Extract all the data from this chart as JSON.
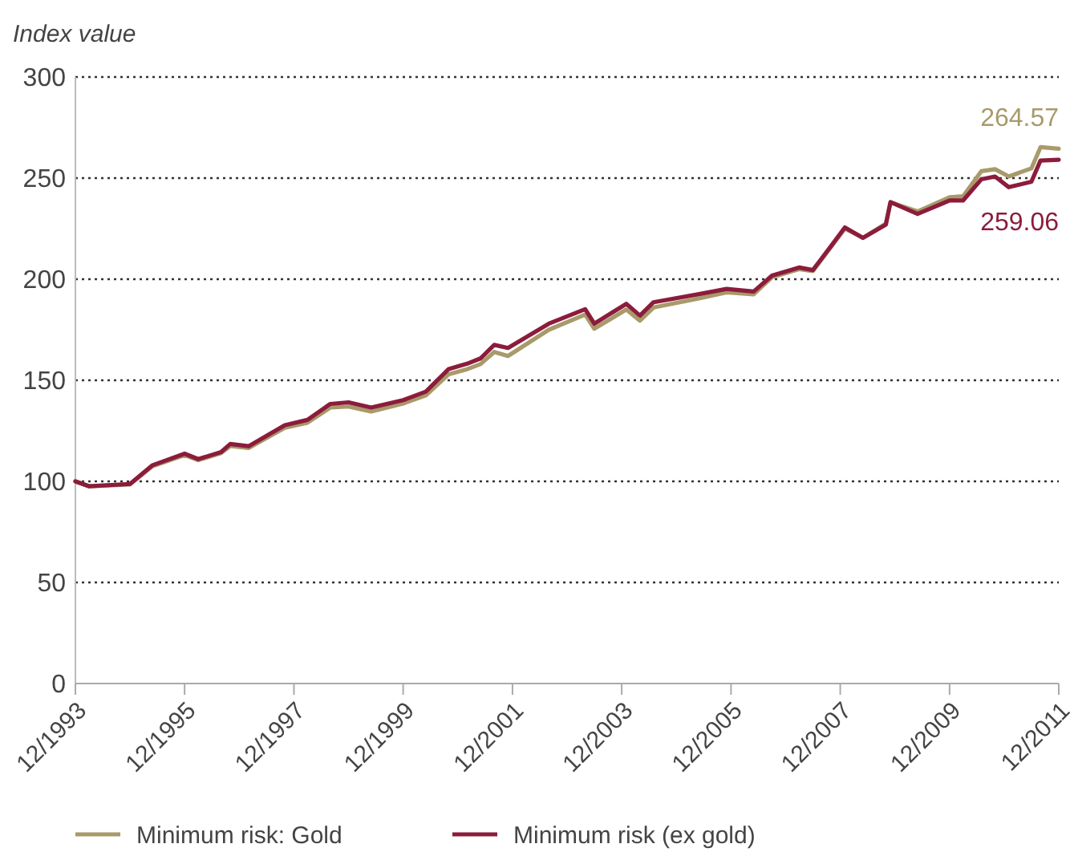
{
  "chart_data": {
    "type": "line",
    "ylabel": "Index value",
    "x": [
      "1993-12",
      "1994-03",
      "1994-12",
      "1995-05",
      "1995-12",
      "1996-03",
      "1996-08",
      "1996-10",
      "1997-02",
      "1997-10",
      "1998-03",
      "1998-08",
      "1998-12",
      "1999-05",
      "1999-12",
      "2000-05",
      "2000-10",
      "2001-02",
      "2001-05",
      "2001-08",
      "2001-11",
      "2002-08",
      "2003-04",
      "2003-06",
      "2004-01",
      "2004-04",
      "2004-07",
      "2005-05",
      "2005-11",
      "2006-05",
      "2006-09",
      "2007-03",
      "2007-06",
      "2007-10",
      "2008-01",
      "2008-05",
      "2008-10",
      "2008-11",
      "2009-05",
      "2009-12",
      "2010-03",
      "2010-07",
      "2010-10",
      "2011-01",
      "2011-06",
      "2011-08",
      "2011-12"
    ],
    "series": [
      {
        "name": "Minimum risk: Gold",
        "color": "#a89a6a",
        "values": [
          100,
          97.6,
          98.5,
          107.5,
          113,
          110.5,
          114,
          117.5,
          116.5,
          126.5,
          129,
          136.5,
          137,
          134.5,
          138.5,
          142.5,
          153,
          155.5,
          158,
          164,
          162,
          175,
          182.5,
          175.5,
          185,
          179.5,
          186,
          190.5,
          193.5,
          192.5,
          201,
          205,
          204,
          216,
          225,
          220.5,
          227.5,
          238,
          233.5,
          240.5,
          241,
          253.4,
          254.4,
          250.8,
          254.8,
          265.3,
          264.57
        ]
      },
      {
        "name": "Minimum risk (ex gold)",
        "color": "#8c1c3c",
        "values": [
          100,
          97.6,
          98.7,
          108,
          113.7,
          111,
          114.5,
          118.5,
          117.4,
          127.8,
          130.4,
          138.3,
          139.1,
          136.5,
          140.2,
          144.4,
          155.6,
          158.2,
          160.8,
          167.5,
          166,
          178,
          185.2,
          178,
          187.8,
          182,
          188.6,
          192.6,
          195.2,
          193.9,
          201.8,
          205.8,
          204.5,
          216.4,
          225.6,
          220.4,
          227,
          238.1,
          232.3,
          238.9,
          238.9,
          249.4,
          250.8,
          245.5,
          248.2,
          258.7,
          259.06
        ]
      }
    ],
    "annotations": [
      {
        "text": "264.57",
        "x": "2011-12",
        "y": 264.57
      },
      {
        "text": "259.06",
        "x": "2011-12",
        "y": 259.06
      }
    ],
    "xlim": [
      "1993-12",
      "2011-12"
    ],
    "xticks": [
      {
        "value": "1993-12",
        "label": "12/1993"
      },
      {
        "value": "1995-12",
        "label": "12/1995"
      },
      {
        "value": "1997-12",
        "label": "12/1997"
      },
      {
        "value": "1999-12",
        "label": "12/1999"
      },
      {
        "value": "2001-12",
        "label": "12/2001"
      },
      {
        "value": "2003-12",
        "label": "12/2003"
      },
      {
        "value": "2005-12",
        "label": "12/2005"
      },
      {
        "value": "2007-12",
        "label": "12/2007"
      },
      {
        "value": "2009-12",
        "label": "12/2009"
      },
      {
        "value": "2011-12",
        "label": "12/2011"
      }
    ],
    "ylim": [
      0,
      300
    ],
    "yticks": [
      0,
      50,
      100,
      150,
      200,
      250,
      300
    ],
    "grid": "y",
    "legend": "bottom",
    "line_style": "solid",
    "marker": "none"
  }
}
